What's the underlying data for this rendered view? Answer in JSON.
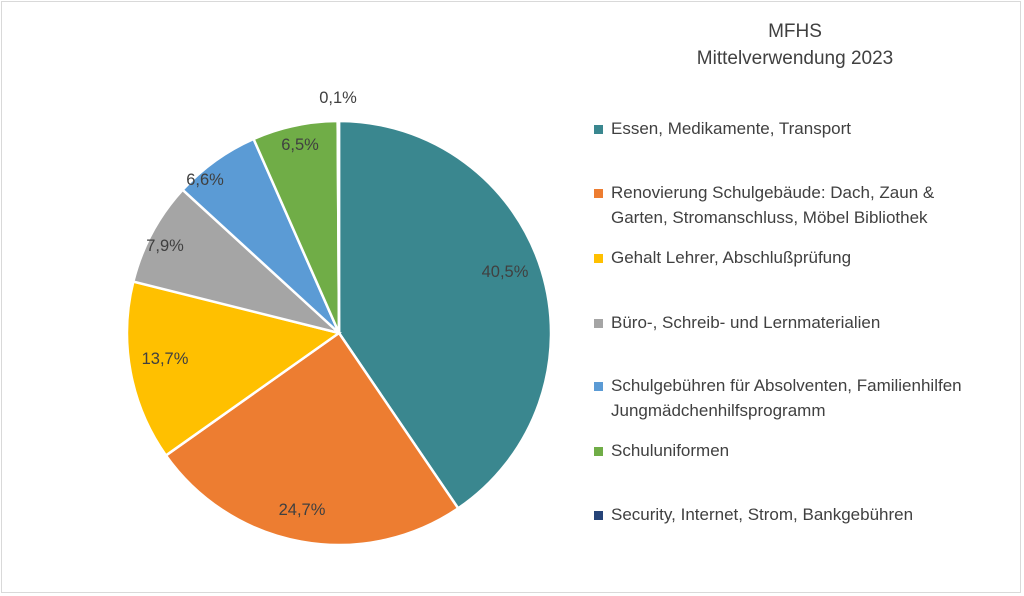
{
  "chart_data": {
    "type": "pie",
    "title": "MFHS\nMittelverwendung 2023",
    "title_lines": [
      "MFHS",
      "Mittelverwendung 2023"
    ],
    "slices": [
      {
        "label": "Essen, Medikamente, Transport",
        "value": 40.5,
        "display": "40,5%",
        "color": "#3a878f"
      },
      {
        "label": "Renovierung Schulgebäude: Dach, Zaun & Garten, Stromanschluss, Möbel Bibliothek",
        "value": 24.7,
        "display": "24,7%",
        "color": "#ed7d31"
      },
      {
        "label": "Gehalt Lehrer, Abschlußprüfung",
        "value": 13.7,
        "display": "13,7%",
        "color": "#ffc000"
      },
      {
        "label": "Büro-, Schreib- und Lernmaterialien",
        "value": 7.9,
        "display": "7,9%",
        "color": "#a5a5a5"
      },
      {
        "label": "Schulgebühren für Absolventen, Familienhilfen Jungmädchenhilfsprogramm",
        "value": 6.6,
        "display": "6,6%",
        "color": "#5b9bd5"
      },
      {
        "label": "Schuluniformen",
        "value": 6.5,
        "display": "6,5%",
        "color": "#70ad47"
      },
      {
        "label": "Security, Internet, Strom, Bankgebühren",
        "value": 0.1,
        "display": "0,1%",
        "color": "#264478"
      }
    ],
    "legend_position": "right",
    "legend_lines": [
      [
        "Essen, Medikamente, Transport"
      ],
      [
        "Renovierung Schulgebäude: Dach, Zaun &",
        "Garten, Stromanschluss, Möbel Bibliothek"
      ],
      [
        "Gehalt Lehrer, Abschlußprüfung"
      ],
      [
        "Büro-, Schreib- und Lernmaterialien"
      ],
      [
        "Schulgebühren für Absolventen, Familienhilfen",
        "Jungmädchenhilfsprogramm"
      ],
      [
        "Schuluniformen"
      ],
      [
        "Security, Internet, Strom, Bankgebühren"
      ]
    ]
  }
}
